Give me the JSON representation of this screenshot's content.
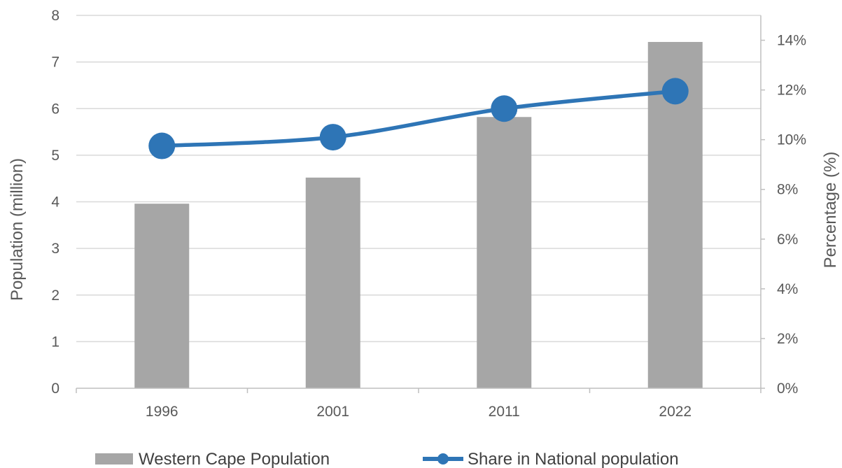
{
  "chart_data": {
    "type": "bar",
    "title": "",
    "categories": [
      "1996",
      "2001",
      "2011",
      "2022"
    ],
    "series": [
      {
        "name": "Western Cape Population",
        "type": "bar",
        "axis": "left",
        "values": [
          3.96,
          4.52,
          5.82,
          7.43
        ],
        "color": "#a6a6a6"
      },
      {
        "name": "Share in National population",
        "type": "line",
        "axis": "right",
        "values": [
          9.75,
          10.1,
          11.25,
          11.95
        ],
        "color": "#2e75b6"
      }
    ],
    "ylabel": "Population (million)",
    "ylim": [
      0,
      8
    ],
    "yticks": [
      "0",
      "1",
      "2",
      "3",
      "4",
      "5",
      "6",
      "7",
      "8"
    ],
    "y2label": "Percentage (%)",
    "y2lim": [
      0,
      15
    ],
    "y2ticks": [
      "0%",
      "2%",
      "4%",
      "6%",
      "8%",
      "10%",
      "12%",
      "14%"
    ],
    "grid": true,
    "legend_position": "bottom"
  }
}
